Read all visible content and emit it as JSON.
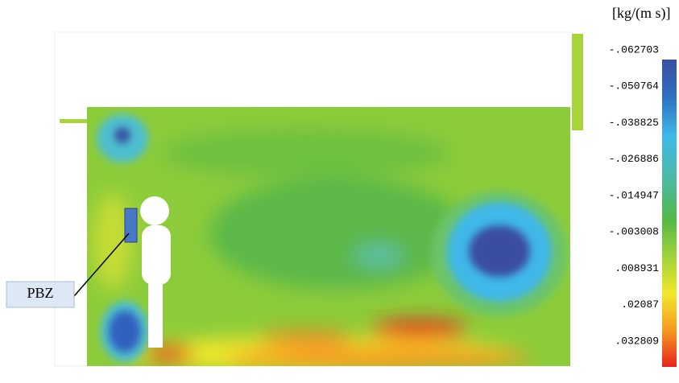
{
  "unit": "[kg/(m s)]",
  "colorbar": {
    "labels": [
      "-.062703",
      "-.050764",
      "-.038825",
      "-.026886",
      "-.014947",
      "-.003008",
      ".008931",
      ".02087",
      ".032809"
    ]
  },
  "annotation": "PBZ"
}
